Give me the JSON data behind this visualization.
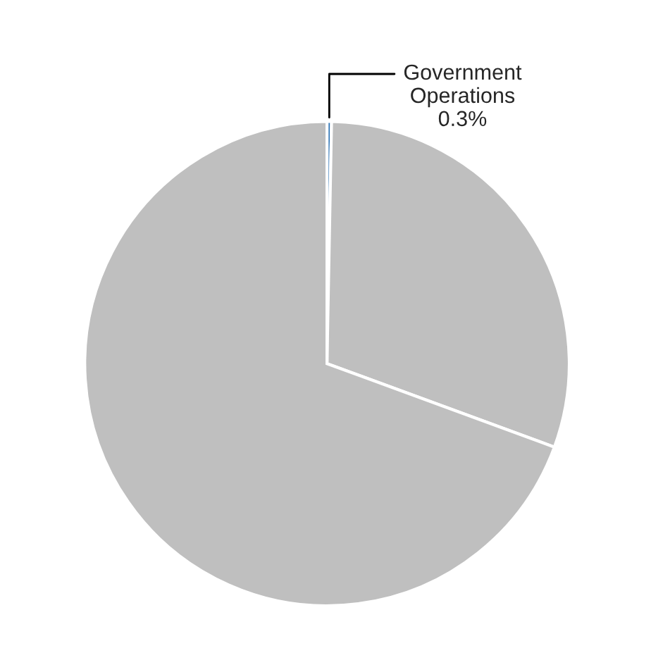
{
  "chart_data": {
    "type": "pie",
    "categories": [
      "Government Operations",
      null,
      null
    ],
    "values": [
      0.3,
      30.3,
      69.4
    ],
    "colors": [
      "#2e75b6",
      "#bfbfbf",
      "#bfbfbf"
    ],
    "value_labels": [
      "0.3%",
      null,
      null
    ],
    "legend": false
  }
}
